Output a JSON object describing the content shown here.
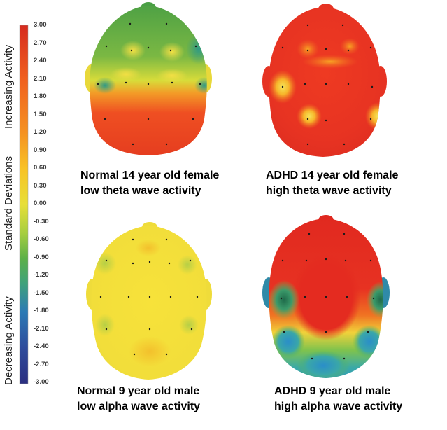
{
  "colorbar": {
    "title": "Standard Deviations",
    "top_label": "Increasing Activity",
    "bottom_label": "Decreasing Activity",
    "ticks": [
      "3.00",
      "2.70",
      "2.40",
      "2.10",
      "1.80",
      "1.50",
      "1.20",
      "0.90",
      "0.60",
      "0.30",
      "0.00",
      "-0.30",
      "-0.60",
      "-0.90",
      "-1.20",
      "-1.50",
      "-1.80",
      "-2.10",
      "-2.40",
      "-2.70",
      "-3.00"
    ],
    "colors": [
      "#d62b1f",
      "#e5391c",
      "#ec4a1e",
      "#f0601f",
      "#f37a20",
      "#f59222",
      "#f7a923",
      "#f8c225",
      "#f5d92c",
      "#eee036",
      "#d4dc3a",
      "#b1d23f",
      "#86c244",
      "#5db048",
      "#3fa27b",
      "#2f8fa3",
      "#2c7ab5",
      "#2e63aa",
      "#2f4c9c",
      "#303c8f",
      "#2b2f80"
    ]
  },
  "panels": [
    {
      "line1": "Normal 14 year old female",
      "line2": "low theta wave activity"
    },
    {
      "line1": "ADHD 14 year old female",
      "line2": "high theta wave activity"
    },
    {
      "line1": "Normal 9 year old male",
      "line2": "low alpha wave activity"
    },
    {
      "line1": "ADHD 9 year old male",
      "line2": "high alpha wave activity"
    }
  ]
}
